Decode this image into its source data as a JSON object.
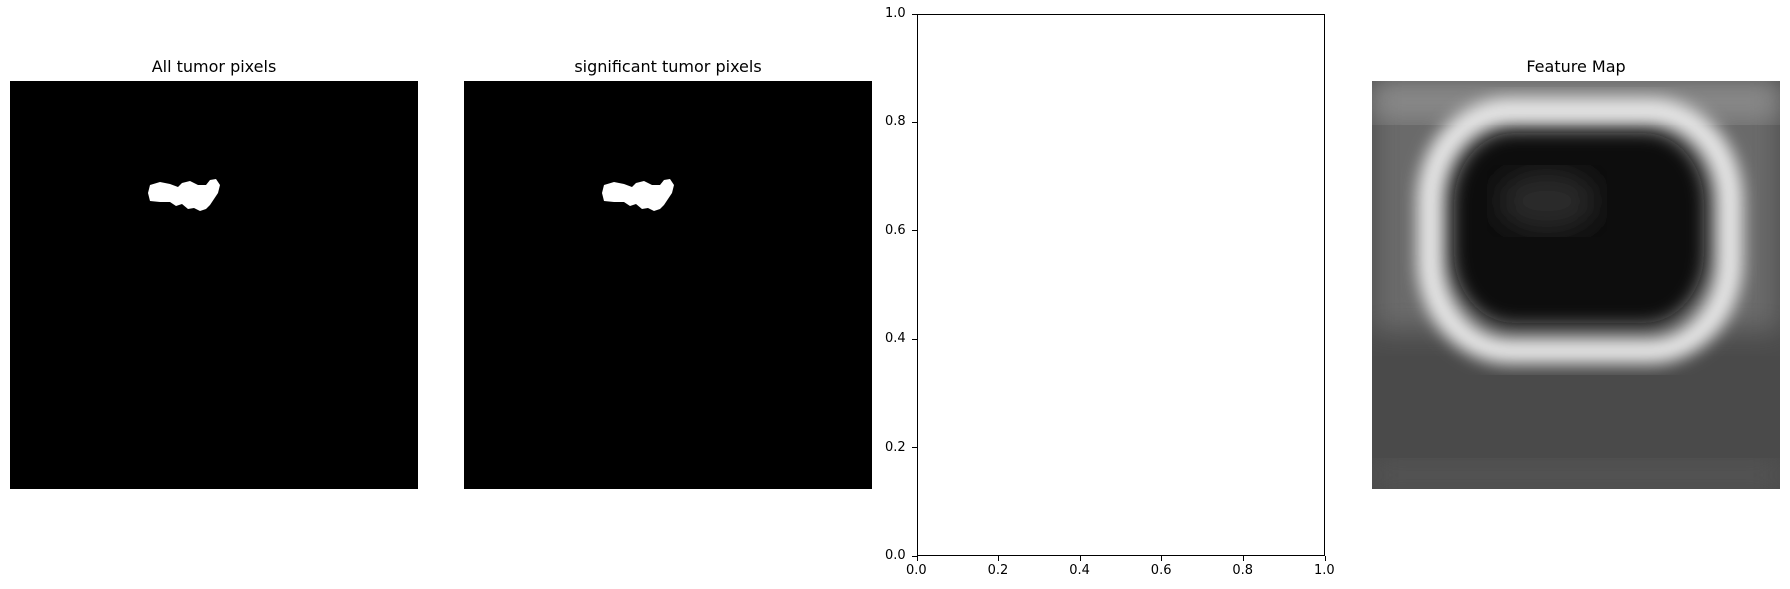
{
  "panels": {
    "p1_title": "All tumor pixels",
    "p2_title": "significant tumor pixels",
    "p4_title": "Feature Map"
  },
  "chart_data": [
    {
      "type": "heatmap",
      "title": "All tumor pixels",
      "colormap": "gray",
      "content": "binary tumor mask"
    },
    {
      "type": "heatmap",
      "title": "significant tumor pixels",
      "colormap": "gray",
      "content": "binary tumor mask"
    },
    {
      "type": "scatter",
      "title": "",
      "x": [],
      "y": [],
      "xlim": [
        0.0,
        1.0
      ],
      "ylim": [
        0.0,
        1.0
      ],
      "xticks": [
        "0.0",
        "0.2",
        "0.4",
        "0.6",
        "0.8",
        "1.0"
      ],
      "yticks": [
        "0.0",
        "0.2",
        "0.4",
        "0.6",
        "0.8",
        "1.0"
      ],
      "grid": false
    },
    {
      "type": "heatmap",
      "title": "Feature Map",
      "colormap": "gray"
    }
  ]
}
